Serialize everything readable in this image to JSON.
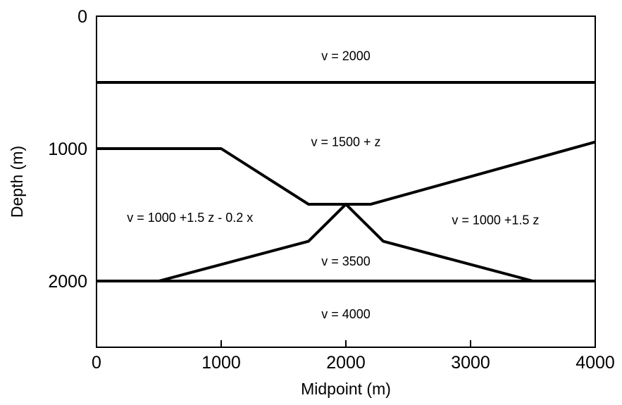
{
  "axes": {
    "x": {
      "label": "Midpoint (m)",
      "range": [
        0,
        4000
      ],
      "ticks": [
        0,
        1000,
        2000,
        3000,
        4000
      ],
      "tick_labels": [
        "0",
        "1000",
        "2000",
        "3000",
        "4000"
      ]
    },
    "y": {
      "label": "Depth (m)",
      "range": [
        0,
        2500
      ],
      "inverted": true,
      "ticks": [
        0,
        1000,
        2000
      ],
      "tick_labels": [
        "0",
        "1000",
        "2000"
      ]
    }
  },
  "interfaces": [
    {
      "name": "interface-500",
      "points": [
        [
          0,
          500
        ],
        [
          4000,
          500
        ]
      ]
    },
    {
      "name": "interface-upper",
      "points": [
        [
          0,
          1000
        ],
        [
          1000,
          1000
        ],
        [
          1700,
          1420
        ],
        [
          2200,
          1420
        ],
        [
          4000,
          950
        ]
      ]
    },
    {
      "name": "interface-wedge",
      "points": [
        [
          500,
          2000
        ],
        [
          1700,
          1700
        ],
        [
          2000,
          1420
        ],
        [
          2300,
          1700
        ],
        [
          3500,
          2000
        ]
      ]
    },
    {
      "name": "interface-2000",
      "points": [
        [
          0,
          2000
        ],
        [
          4000,
          2000
        ]
      ]
    }
  ],
  "layers": [
    {
      "name": "layer-v2000",
      "text": "v = 2000",
      "x": 2000,
      "z": 300
    },
    {
      "name": "layer-v1500",
      "text": "v = 1500 + z",
      "x": 2000,
      "z": 950
    },
    {
      "name": "layer-left",
      "text": "v = 1000 +1.5 z - 0.2 x",
      "x": 750,
      "z": 1520
    },
    {
      "name": "layer-right",
      "text": "v = 1000 +1.5 z",
      "x": 3200,
      "z": 1540
    },
    {
      "name": "layer-v3500",
      "text": "v = 3500",
      "x": 2000,
      "z": 1850
    },
    {
      "name": "layer-v4000",
      "text": "v = 4000",
      "x": 2000,
      "z": 2250
    }
  ],
  "colors": {
    "line": "#000000",
    "background": "#ffffff"
  }
}
